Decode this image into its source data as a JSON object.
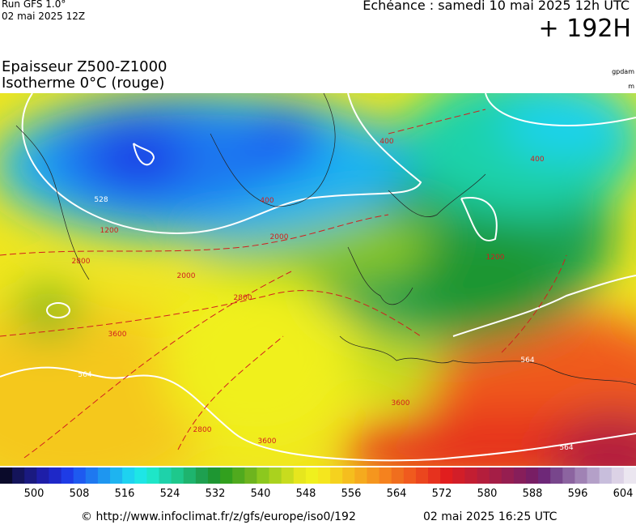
{
  "header": {
    "run": "Run GFS 1.0°",
    "run_date": "02 mai 2025 12Z",
    "echeance": "Echéance : samedi 10 mai 2025 12h UTC",
    "offset": "+ 192H",
    "title_line1": "Epaisseur Z500-Z1000",
    "title_line2": "Isotherme 0°C (rouge)",
    "unit1": "gpdam",
    "unit2": "m"
  },
  "map": {
    "contour_labels": [
      "528",
      "564",
      "564",
      "564",
      "1200",
      "1200",
      "2000",
      "2000",
      "2800",
      "2800",
      "2800",
      "3600",
      "3600",
      "3600",
      "400",
      "400",
      "400"
    ]
  },
  "colorbar": {
    "colors": [
      "#0a0a2a",
      "#14145a",
      "#1a1a80",
      "#1e1ea8",
      "#1e28c8",
      "#1e3ce6",
      "#1e5af0",
      "#1e78f0",
      "#1e96f0",
      "#1eb4f0",
      "#1ed2f0",
      "#1ee6e6",
      "#1ee6c8",
      "#1ed2aa",
      "#1ec88c",
      "#1eb46e",
      "#1ea050",
      "#1e9632",
      "#32a01e",
      "#50aa1e",
      "#6eb41e",
      "#8cc81e",
      "#aad21e",
      "#c8dc1e",
      "#e6e61e",
      "#f0f01e",
      "#f5e61e",
      "#f5d21e",
      "#f5be1e",
      "#f5aa1e",
      "#f5961e",
      "#f5821e",
      "#f06e1e",
      "#f05a1e",
      "#eb461e",
      "#e6321e",
      "#e11e1e",
      "#d21e28",
      "#c31e32",
      "#b41e3c",
      "#a51e46",
      "#961e50",
      "#871e5a",
      "#781e64",
      "#6e2878",
      "#78468c",
      "#8c64a0",
      "#a082b4",
      "#b4a0c8",
      "#c8bedc",
      "#dcd2e6",
      "#ebe6f0"
    ],
    "ticks": [
      "500",
      "508",
      "516",
      "524",
      "532",
      "540",
      "548",
      "556",
      "564",
      "572",
      "580",
      "588",
      "596",
      "604"
    ]
  },
  "footer": {
    "url": "© http://www.infoclimat.fr/z/gfs/europe/iso0/192",
    "generated": "02 mai 2025 16:25 UTC"
  }
}
